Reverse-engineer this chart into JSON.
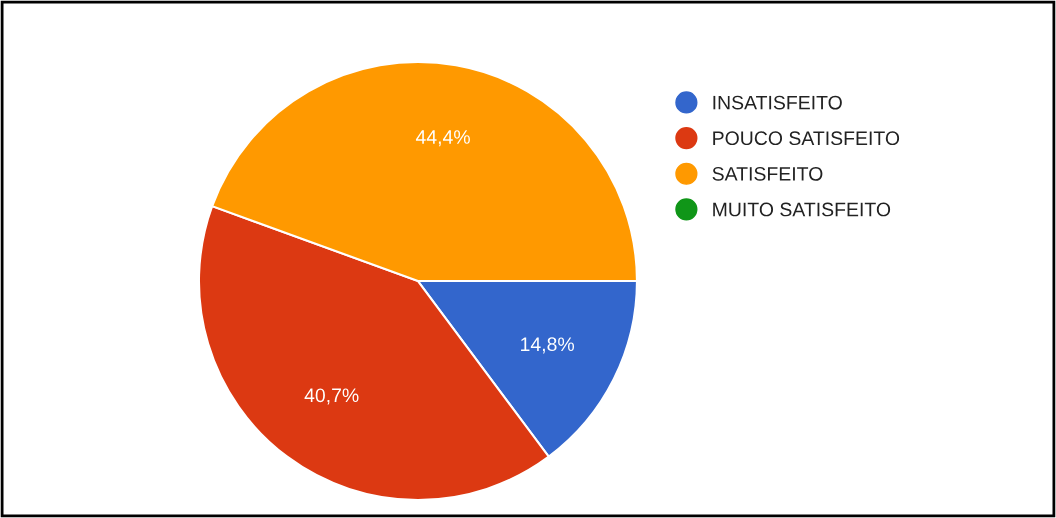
{
  "chart_data": {
    "type": "pie",
    "categories": [
      "INSATISFEITO",
      "POUCO SATISFEITO",
      "SATISFEITO",
      "MUITO SATISFEITO"
    ],
    "values": [
      14.8,
      40.7,
      44.4,
      0
    ],
    "value_labels": [
      "14,8%",
      "40,7%",
      "44,4%",
      null
    ],
    "colors": [
      "#3366cc",
      "#dc3912",
      "#ff9900",
      "#109618"
    ],
    "legend": "top right"
  }
}
